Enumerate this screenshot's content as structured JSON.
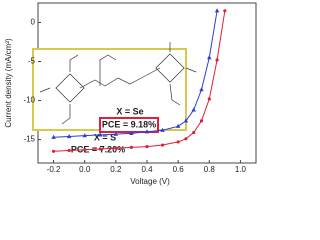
{
  "chart_data": {
    "type": "line",
    "x_label": "Voltage (V)",
    "y_label": "Current density (mA/cm²)",
    "x": [
      -0.2,
      -0.1,
      0,
      0.1,
      0.2,
      0.3,
      0.4,
      0.5,
      0.6,
      0.65,
      0.7,
      0.75,
      0.8,
      0.85,
      0.9
    ],
    "series": [
      {
        "name": "X = S",
        "color": "#2b3fd6",
        "marker": "triangle",
        "values": [
          -14.7,
          -14.6,
          -14.5,
          -14.4,
          -14.3,
          -14.2,
          -14.0,
          -13.8,
          -13.3,
          -12.6,
          -11.2,
          -8.6,
          -4.5,
          1.5,
          null
        ]
      },
      {
        "name": "X = Se",
        "color": "#e0203a",
        "marker": "circle",
        "values": [
          -16.5,
          -16.4,
          -16.3,
          -16.2,
          -16.1,
          -16.0,
          -15.9,
          -15.7,
          -15.3,
          -14.9,
          -14.1,
          -12.6,
          -9.8,
          -4.8,
          1.5
        ]
      }
    ],
    "annotations": [
      "PCE = 7.20%",
      "PCE = 9.18%"
    ],
    "xlim": [
      -0.3,
      1.1
    ],
    "ylim": [
      -18,
      2.5
    ],
    "xticks": [
      -0.2,
      {
        "value": 0,
        "label": "0.0"
      },
      0.2,
      0.4,
      0.6,
      0.8,
      {
        "value": 1,
        "label": "1.0"
      }
    ],
    "yticks": [
      0,
      -5,
      -10,
      -15
    ],
    "grid": false
  }
}
